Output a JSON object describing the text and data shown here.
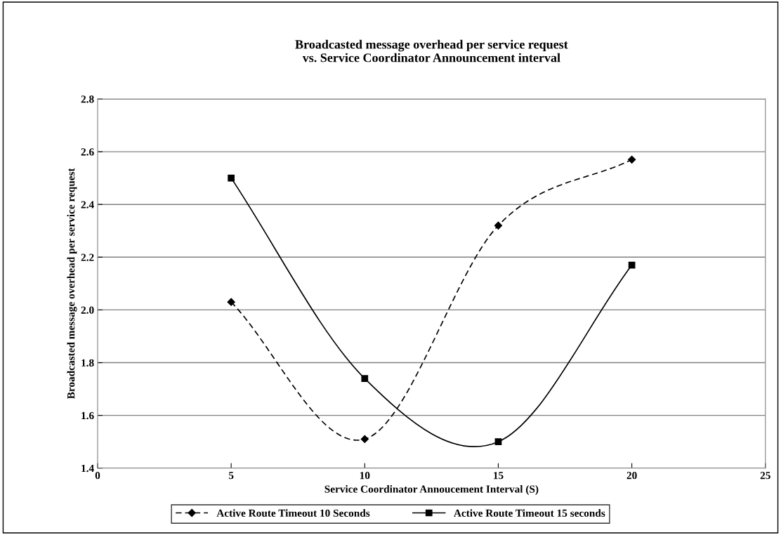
{
  "chart_data": {
    "type": "line",
    "title": "Broadcasted message overhead per service request\nvs. Service Coordinator Announcement interval",
    "xlabel": "Service Coordinator Annoucement Interval (S)",
    "ylabel": "Broadcasted message overhead per service request",
    "x": [
      5,
      10,
      15,
      20
    ],
    "series": [
      {
        "name": "Active Route Timeout 10 Seconds",
        "color": "#000000",
        "values": [
          2.03,
          1.51,
          2.32,
          2.57
        ],
        "marker": "diamond",
        "line_style": "dashed"
      },
      {
        "name": "Active Route Timeout 15 seconds",
        "color": "#000000",
        "values": [
          2.5,
          1.74,
          1.5,
          2.17
        ],
        "marker": "square",
        "line_style": "solid"
      }
    ],
    "xlim": [
      0,
      25
    ],
    "xticks": [
      0,
      5,
      10,
      15,
      20,
      25
    ],
    "ylim": [
      1.4,
      2.8
    ],
    "yticks": [
      {
        "value": 1.4,
        "label": "1.4"
      },
      {
        "value": 1.6,
        "label": "1.6"
      },
      {
        "value": 1.8,
        "label": "1.8"
      },
      {
        "value": 2.0,
        "label": "2.0"
      },
      {
        "value": 2.2,
        "label": "2.2"
      },
      {
        "value": 2.4,
        "label": "2.4"
      },
      {
        "value": 2.6,
        "label": "2.6"
      },
      {
        "value": 2.8,
        "label": "2.8"
      }
    ],
    "grid": "y",
    "legend": "bottom"
  }
}
